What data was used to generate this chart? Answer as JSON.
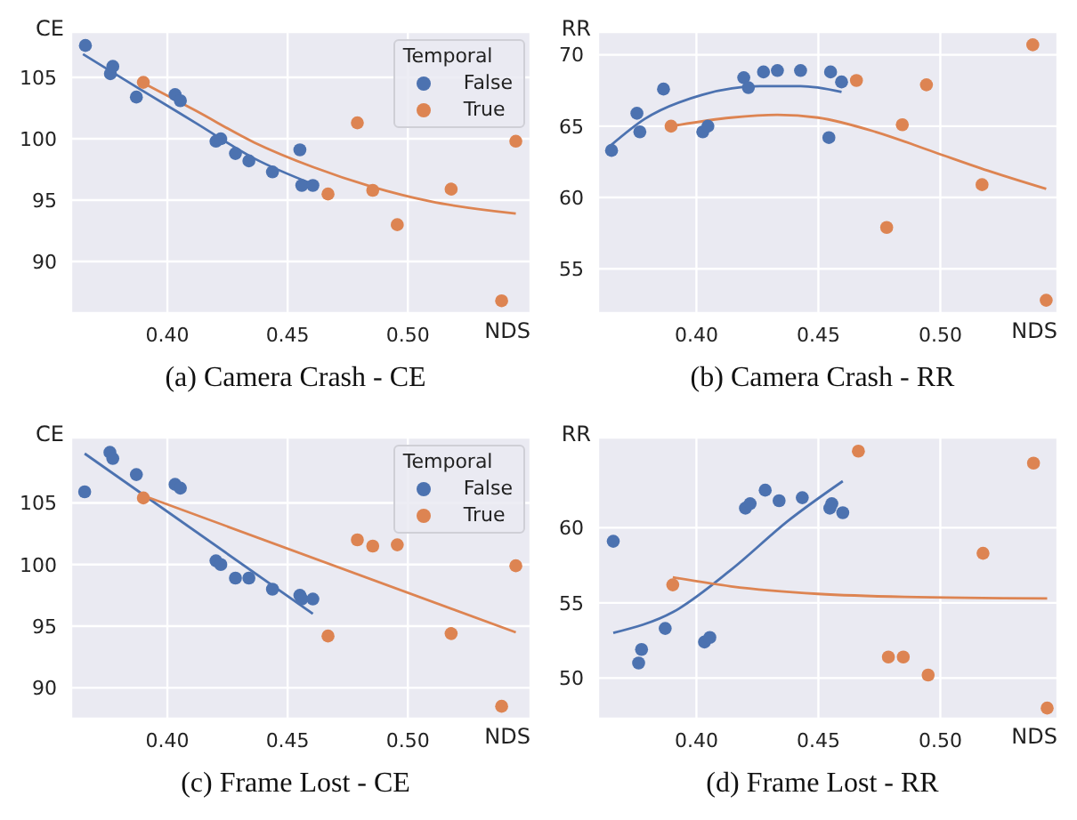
{
  "chart_data": [
    {
      "type": "scatter",
      "title": "(a) Camera Crash - CE",
      "xlabel": "NDS",
      "ylabel": "CE",
      "legend_title": "Temporal",
      "legend": "top right",
      "grid": true,
      "xlim": [
        0.36,
        0.551
      ],
      "ylim": [
        85.8,
        108.7
      ],
      "xticks": [
        {
          "value": 0.4,
          "label": "0.40"
        },
        {
          "value": 0.45,
          "label": "0.45"
        },
        {
          "value": 0.5,
          "label": "0.50"
        }
      ],
      "yticks": [
        90,
        95,
        100,
        105
      ],
      "series": [
        {
          "name": "False",
          "color": "#4c72b0",
          "marker": "circle",
          "x": [
            0.3659,
            0.3763,
            0.3773,
            0.3871,
            0.4032,
            0.4054,
            0.4202,
            0.4222,
            0.4283,
            0.4339,
            0.4437,
            0.4551,
            0.4559,
            0.4605
          ],
          "values": [
            107.6,
            105.3,
            105.9,
            103.4,
            103.6,
            103.1,
            99.8,
            100.0,
            98.8,
            98.2,
            97.3,
            99.1,
            96.2,
            96.2
          ]
        },
        {
          "name": "True",
          "color": "#dd8452",
          "marker": "circle",
          "x": [
            0.39,
            0.4668,
            0.479,
            0.4854,
            0.4956,
            0.518,
            0.539,
            0.5449
          ],
          "values": [
            104.6,
            95.5,
            101.3,
            95.8,
            93.0,
            95.9,
            86.8,
            99.8
          ]
        },
        {
          "type": "line",
          "color": "#4c72b0",
          "marker": "none",
          "x": [
            0.3649,
            0.3873,
            0.4117,
            0.4361,
            0.4605
          ],
          "values": [
            106.9,
            104.2,
            101.3,
            98.4,
            96.3
          ]
        },
        {
          "type": "line",
          "color": "#dd8452",
          "marker": "none",
          "x": [
            0.3885,
            0.4117,
            0.4361,
            0.4605,
            0.4849,
            0.5093,
            0.5449
          ],
          "values": [
            104.7,
            102.3,
            99.7,
            97.7,
            96.1,
            94.9,
            93.9
          ]
        }
      ]
    },
    {
      "type": "scatter",
      "title": "(b) Camera Crash - RR",
      "xlabel": "NDS",
      "ylabel": "RR",
      "grid": true,
      "xlim": [
        0.3597,
        0.548
      ],
      "ylim": [
        51.9,
        71.6
      ],
      "xticks": [
        {
          "value": 0.4,
          "label": "0.40"
        },
        {
          "value": 0.45,
          "label": "0.45"
        },
        {
          "value": 0.5,
          "label": "0.50"
        }
      ],
      "yticks": [
        55,
        60,
        65,
        70
      ],
      "series": [
        {
          "color": "#4c72b0",
          "marker": "circle",
          "x": [
            0.3652,
            0.3756,
            0.3768,
            0.3865,
            0.4026,
            0.4047,
            0.4194,
            0.4213,
            0.4275,
            0.4332,
            0.4427,
            0.4543,
            0.455,
            0.4595
          ],
          "values": [
            63.3,
            65.9,
            64.6,
            67.6,
            64.6,
            65.0,
            68.4,
            67.7,
            68.8,
            68.9,
            68.9,
            64.2,
            68.8,
            68.1
          ]
        },
        {
          "color": "#dd8452",
          "marker": "circle",
          "x": [
            0.3896,
            0.4656,
            0.478,
            0.4844,
            0.4943,
            0.5171,
            0.5379,
            0.5434
          ],
          "values": [
            65.0,
            68.2,
            57.9,
            65.1,
            67.9,
            60.9,
            70.7,
            52.8
          ]
        },
        {
          "type": "line",
          "color": "#4c72b0",
          "marker": "none",
          "x": [
            0.3645,
            0.3787,
            0.4024,
            0.4261,
            0.4427,
            0.4595
          ],
          "values": [
            63.6,
            65.5,
            67.2,
            67.8,
            67.8,
            67.4
          ]
        },
        {
          "type": "line",
          "color": "#dd8452",
          "marker": "none",
          "x": [
            0.3896,
            0.4142,
            0.4332,
            0.4498,
            0.4735,
            0.4972,
            0.5209,
            0.5434
          ],
          "values": [
            65.0,
            65.6,
            65.8,
            65.6,
            64.6,
            63.2,
            61.8,
            60.6
          ]
        }
      ]
    },
    {
      "type": "scatter",
      "title": "(c) Frame Lost - CE",
      "xlabel": "NDS",
      "ylabel": "CE",
      "legend_title": "Temporal",
      "legend": "top right",
      "grid": true,
      "xlim": [
        0.36,
        0.551
      ],
      "ylim": [
        87.5,
        110.3
      ],
      "xticks": [
        {
          "value": 0.4,
          "label": "0.40"
        },
        {
          "value": 0.45,
          "label": "0.45"
        },
        {
          "value": 0.5,
          "label": "0.50"
        }
      ],
      "yticks": [
        90,
        95,
        100,
        105
      ],
      "series": [
        {
          "name": "False",
          "color": "#4c72b0",
          "marker": "circle",
          "x": [
            0.3656,
            0.3761,
            0.3773,
            0.3871,
            0.4032,
            0.4054,
            0.4202,
            0.4222,
            0.4283,
            0.4339,
            0.4437,
            0.4551,
            0.4559,
            0.4605
          ],
          "values": [
            105.9,
            109.1,
            108.6,
            107.3,
            106.5,
            106.2,
            100.3,
            100.0,
            98.9,
            98.9,
            98.0,
            97.5,
            97.2,
            97.2
          ]
        },
        {
          "name": "True",
          "color": "#dd8452",
          "marker": "circle",
          "x": [
            0.39,
            0.4668,
            0.479,
            0.4854,
            0.4956,
            0.518,
            0.539,
            0.5449
          ],
          "values": [
            105.4,
            94.2,
            102.0,
            101.5,
            101.6,
            94.4,
            88.5,
            99.9
          ]
        },
        {
          "type": "line",
          "color": "#4c72b0",
          "marker": "none",
          "x": [
            0.3656,
            0.4605
          ],
          "values": [
            109.0,
            96.0
          ]
        },
        {
          "type": "line",
          "color": "#dd8452",
          "marker": "none",
          "x": [
            0.3885,
            0.5449
          ],
          "values": [
            105.7,
            94.5
          ]
        }
      ]
    },
    {
      "type": "scatter",
      "title": "(d) Frame Lost - RR",
      "xlabel": "NDS",
      "ylabel": "RR",
      "grid": true,
      "xlim": [
        0.3597,
        0.548
      ],
      "ylim": [
        47.3,
        66.0
      ],
      "xticks": [
        {
          "value": 0.4,
          "label": "0.40"
        },
        {
          "value": 0.45,
          "label": "0.45"
        },
        {
          "value": 0.5,
          "label": "0.50"
        }
      ],
      "yticks": [
        50,
        55,
        60
      ],
      "series": [
        {
          "color": "#4c72b0",
          "marker": "circle",
          "x": [
            0.3659,
            0.3763,
            0.3775,
            0.3872,
            0.4033,
            0.4055,
            0.4201,
            0.422,
            0.4282,
            0.4339,
            0.4434,
            0.4547,
            0.4555,
            0.46
          ],
          "values": [
            59.1,
            51.0,
            51.9,
            53.3,
            52.4,
            52.7,
            61.3,
            61.6,
            62.5,
            61.8,
            62.0,
            61.3,
            61.6,
            61.0
          ]
        },
        {
          "color": "#dd8452",
          "marker": "circle",
          "x": [
            0.3903,
            0.4664,
            0.4787,
            0.4848,
            0.495,
            0.5175,
            0.5382,
            0.5438
          ],
          "values": [
            56.2,
            65.1,
            51.4,
            51.4,
            50.2,
            58.3,
            64.3,
            48.0
          ]
        },
        {
          "type": "line",
          "color": "#4c72b0",
          "marker": "none",
          "x": [
            0.3659,
            0.3905,
            0.4142,
            0.4379,
            0.46
          ],
          "values": [
            53.0,
            54.4,
            57.2,
            60.5,
            63.1
          ]
        },
        {
          "type": "line",
          "color": "#dd8452",
          "marker": "none",
          "x": [
            0.3903,
            0.4142,
            0.4498,
            0.4853,
            0.5438
          ],
          "values": [
            56.7,
            56.1,
            55.6,
            55.4,
            55.3
          ]
        }
      ]
    }
  ]
}
